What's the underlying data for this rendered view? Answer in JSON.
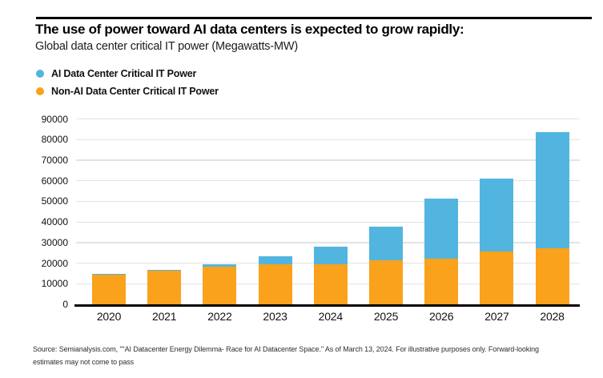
{
  "header": {
    "title": "The use of power toward AI data centers is expected to grow rapidly:",
    "subtitle": "Global data center critical IT power (Megawatts-MW)"
  },
  "legend": [
    {
      "label": "AI Data Center Critical IT Power",
      "color": "#52B5E0"
    },
    {
      "label": "Non-AI Data Center Critical IT Power",
      "color": "#FAA21B"
    }
  ],
  "footer": {
    "line1": "Source: Semianalysis.com, \"\"AI Datacenter Energy Dilemma- Race for AI Datacenter Space.\" As of March 13, 2024.  For illustrative purposes only. Forward-looking",
    "line2": "estimates may not come to pass"
  },
  "colors": {
    "ai_blue": "#52B5E0",
    "non_ai_orange": "#FAA21B",
    "gridline": "#e3e3e3",
    "axis": "#000000"
  },
  "chart_data": {
    "type": "bar",
    "stacked": true,
    "title": "The use of power toward AI data centers is expected to grow rapidly:",
    "subtitle": "Global data center critical IT power (Megawatts-MW)",
    "xlabel": "",
    "ylabel": "Megawatts (MW)",
    "categories": [
      "2020",
      "2021",
      "2022",
      "2023",
      "2024",
      "2025",
      "2026",
      "2027",
      "2028"
    ],
    "series": [
      {
        "name": "Non-AI Data Center Critical IT Power",
        "color": "#FAA21B",
        "values": [
          14200,
          16300,
          18400,
          19400,
          19300,
          21300,
          22300,
          25800,
          27200
        ]
      },
      {
        "name": "AI Data Center Critical IT Power",
        "color": "#52B5E0",
        "values": [
          500,
          600,
          900,
          3900,
          8800,
          16500,
          29200,
          35200,
          56300
        ]
      }
    ],
    "totals": [
      14700,
      16900,
      19300,
      23300,
      28100,
      37800,
      51500,
      61000,
      83500
    ],
    "ylim": [
      0,
      90000
    ],
    "yticks": [
      0,
      10000,
      20000,
      30000,
      40000,
      50000,
      60000,
      70000,
      80000,
      90000
    ],
    "grid": true,
    "legend_position": "top-left"
  }
}
